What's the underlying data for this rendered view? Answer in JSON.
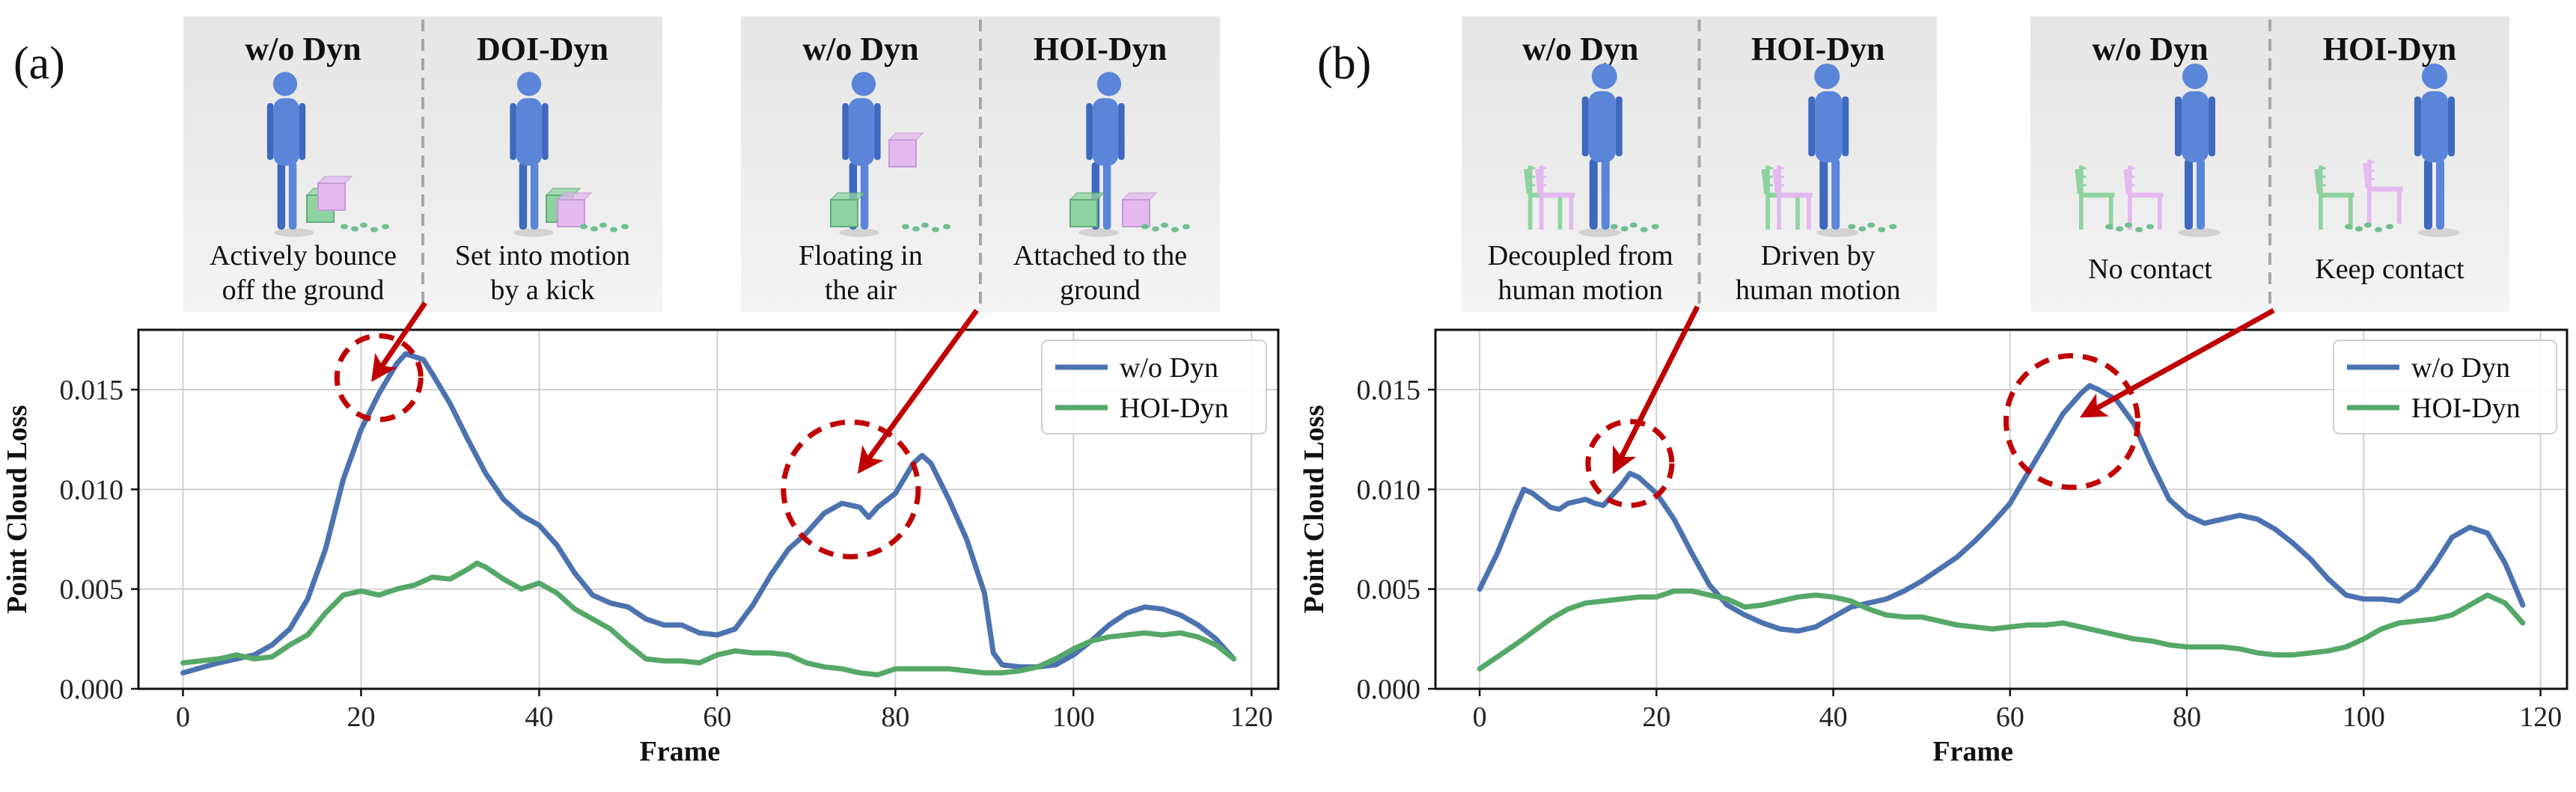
{
  "panels": [
    {
      "panel_label": "(a)",
      "insets": [
        {
          "left_title": "w/o Dyn",
          "right_title": "DOI-Dyn",
          "left_caption": [
            "Actively bounce",
            "off the ground"
          ],
          "right_caption": [
            "Set into motion",
            "by a kick"
          ]
        },
        {
          "left_title": "w/o Dyn",
          "right_title": "HOI-Dyn",
          "left_caption": [
            "Floating in",
            "the air"
          ],
          "right_caption": [
            "Attached to the",
            "ground"
          ]
        }
      ]
    },
    {
      "panel_label": "(b)",
      "insets": [
        {
          "left_title": "w/o Dyn",
          "right_title": "HOI-Dyn",
          "left_caption": [
            "Decoupled from",
            "human motion"
          ],
          "right_caption": [
            "Driven by",
            "human motion"
          ]
        },
        {
          "left_title": "w/o Dyn",
          "right_title": "HOI-Dyn",
          "left_caption": [
            "No contact"
          ],
          "right_caption": [
            "Keep contact"
          ]
        }
      ]
    }
  ],
  "colors": {
    "series_blue": "#4c72b0",
    "series_green": "#55a868",
    "annotation_red": "#c00000",
    "inset_bg": "#e9e9e9",
    "grid": "#d0d0d0"
  },
  "chart_data": [
    {
      "type": "line",
      "title": "",
      "xlabel": "Frame",
      "ylabel": "Point Cloud Loss",
      "xlim": [
        -5,
        123
      ],
      "ylim": [
        0,
        0.018
      ],
      "xticks": [
        0,
        20,
        40,
        60,
        80,
        100,
        120
      ],
      "yticks": [
        0.0,
        0.005,
        0.01,
        0.015
      ],
      "ytick_labels": [
        "0.000",
        "0.005",
        "0.010",
        "0.015"
      ],
      "grid": true,
      "legend_position": "top-right",
      "highlight_circles": [
        {
          "x": 22,
          "y": 0.0156
        },
        {
          "x": 75,
          "y": 0.01
        }
      ],
      "series": [
        {
          "name": "w/o Dyn",
          "color": "#4c72b0",
          "x": [
            0,
            4,
            8,
            10,
            12,
            14,
            16,
            18,
            20,
            22,
            24,
            25,
            27,
            28,
            30,
            32,
            34,
            36,
            38,
            40,
            42,
            44,
            46,
            48,
            50,
            52,
            54,
            56,
            58,
            60,
            62,
            64,
            66,
            68,
            70,
            72,
            74,
            76,
            77,
            78,
            80,
            82,
            83,
            84,
            86,
            88,
            90,
            91,
            92,
            94,
            96,
            98,
            100,
            102,
            104,
            106,
            108,
            110,
            112,
            114,
            116,
            118
          ],
          "y": [
            0.0008,
            0.0013,
            0.0017,
            0.0022,
            0.003,
            0.0045,
            0.007,
            0.0105,
            0.013,
            0.0148,
            0.0163,
            0.0168,
            0.0165,
            0.0158,
            0.0143,
            0.0125,
            0.0108,
            0.0095,
            0.0087,
            0.0082,
            0.0072,
            0.0058,
            0.0047,
            0.0043,
            0.0041,
            0.0035,
            0.0032,
            0.0032,
            0.0028,
            0.0027,
            0.003,
            0.0042,
            0.0057,
            0.007,
            0.0078,
            0.0088,
            0.0093,
            0.0091,
            0.0086,
            0.0091,
            0.0098,
            0.0113,
            0.0117,
            0.0113,
            0.0095,
            0.0075,
            0.0048,
            0.0018,
            0.0012,
            0.0011,
            0.0011,
            0.0012,
            0.0017,
            0.0024,
            0.0032,
            0.0038,
            0.0041,
            0.004,
            0.0037,
            0.0032,
            0.0025,
            0.0015
          ]
        },
        {
          "name": "HOI-Dyn",
          "color": "#55a868",
          "x": [
            0,
            4,
            6,
            8,
            10,
            12,
            14,
            16,
            18,
            20,
            22,
            24,
            26,
            28,
            30,
            32,
            33,
            34,
            36,
            38,
            40,
            42,
            44,
            46,
            48,
            50,
            52,
            54,
            56,
            58,
            60,
            62,
            64,
            66,
            68,
            70,
            72,
            74,
            76,
            78,
            80,
            82,
            84,
            86,
            88,
            90,
            92,
            94,
            96,
            98,
            100,
            102,
            104,
            106,
            108,
            110,
            112,
            114,
            116,
            118
          ],
          "y": [
            0.0013,
            0.0015,
            0.0017,
            0.0015,
            0.0016,
            0.0022,
            0.0027,
            0.0038,
            0.0047,
            0.0049,
            0.0047,
            0.005,
            0.0052,
            0.0056,
            0.0055,
            0.006,
            0.0063,
            0.0061,
            0.0055,
            0.005,
            0.0053,
            0.0048,
            0.004,
            0.0035,
            0.003,
            0.0022,
            0.0015,
            0.0014,
            0.0014,
            0.0013,
            0.0017,
            0.0019,
            0.0018,
            0.0018,
            0.0017,
            0.0013,
            0.0011,
            0.001,
            0.0008,
            0.0007,
            0.001,
            0.001,
            0.001,
            0.001,
            0.0009,
            0.0008,
            0.0008,
            0.0009,
            0.0011,
            0.0015,
            0.002,
            0.0024,
            0.0026,
            0.0027,
            0.0028,
            0.0027,
            0.0028,
            0.0026,
            0.0022,
            0.0015
          ]
        }
      ]
    },
    {
      "type": "line",
      "title": "",
      "xlabel": "Frame",
      "ylabel": "Point Cloud Loss",
      "xlim": [
        -5,
        123
      ],
      "ylim": [
        0,
        0.018
      ],
      "xticks": [
        0,
        20,
        40,
        60,
        80,
        100,
        120
      ],
      "yticks": [
        0.0,
        0.005,
        0.01,
        0.015
      ],
      "ytick_labels": [
        "0.000",
        "0.005",
        "0.010",
        "0.015"
      ],
      "grid": true,
      "legend_position": "top-right",
      "highlight_circles": [
        {
          "x": 17,
          "y": 0.0113
        },
        {
          "x": 67,
          "y": 0.0134
        }
      ],
      "series": [
        {
          "name": "w/o Dyn",
          "color": "#4c72b0",
          "x": [
            0,
            2,
            4,
            5,
            6,
            8,
            9,
            10,
            12,
            13,
            14,
            16,
            17,
            18,
            20,
            22,
            24,
            26,
            28,
            30,
            32,
            34,
            36,
            38,
            40,
            42,
            44,
            46,
            48,
            50,
            52,
            54,
            56,
            58,
            60,
            62,
            64,
            66,
            68,
            69,
            70,
            72,
            74,
            76,
            78,
            80,
            82,
            84,
            86,
            88,
            90,
            92,
            94,
            96,
            98,
            100,
            102,
            104,
            106,
            108,
            110,
            112,
            114,
            116,
            118
          ],
          "y": [
            0.005,
            0.0068,
            0.009,
            0.01,
            0.0098,
            0.0091,
            0.009,
            0.0093,
            0.0095,
            0.0093,
            0.0092,
            0.0102,
            0.0108,
            0.0106,
            0.0098,
            0.0085,
            0.0068,
            0.0052,
            0.0042,
            0.0037,
            0.0033,
            0.003,
            0.0029,
            0.0031,
            0.0036,
            0.0041,
            0.0043,
            0.0045,
            0.0049,
            0.0054,
            0.006,
            0.0066,
            0.0074,
            0.0083,
            0.0093,
            0.0108,
            0.0123,
            0.0138,
            0.0148,
            0.0152,
            0.015,
            0.0145,
            0.0133,
            0.0113,
            0.0095,
            0.0087,
            0.0083,
            0.0085,
            0.0087,
            0.0085,
            0.008,
            0.0073,
            0.0065,
            0.0055,
            0.0047,
            0.0045,
            0.0045,
            0.0044,
            0.005,
            0.0062,
            0.0076,
            0.0081,
            0.0078,
            0.0063,
            0.0042
          ]
        },
        {
          "name": "HOI-Dyn",
          "color": "#55a868",
          "x": [
            0,
            4,
            8,
            10,
            12,
            14,
            16,
            18,
            20,
            22,
            24,
            26,
            28,
            30,
            32,
            34,
            36,
            38,
            40,
            42,
            44,
            46,
            48,
            50,
            52,
            54,
            56,
            58,
            60,
            62,
            64,
            66,
            68,
            70,
            72,
            74,
            76,
            78,
            80,
            82,
            84,
            86,
            88,
            90,
            92,
            94,
            96,
            98,
            100,
            102,
            104,
            106,
            108,
            110,
            112,
            114,
            116,
            118
          ],
          "y": [
            0.001,
            0.0022,
            0.0035,
            0.004,
            0.0043,
            0.0044,
            0.0045,
            0.0046,
            0.0046,
            0.0049,
            0.0049,
            0.0047,
            0.0045,
            0.0041,
            0.0042,
            0.0044,
            0.0046,
            0.0047,
            0.0046,
            0.0044,
            0.004,
            0.0037,
            0.0036,
            0.0036,
            0.0034,
            0.0032,
            0.0031,
            0.003,
            0.0031,
            0.0032,
            0.0032,
            0.0033,
            0.0031,
            0.0029,
            0.0027,
            0.0025,
            0.0024,
            0.0022,
            0.0021,
            0.0021,
            0.0021,
            0.002,
            0.0018,
            0.0017,
            0.0017,
            0.0018,
            0.0019,
            0.0021,
            0.0025,
            0.003,
            0.0033,
            0.0034,
            0.0035,
            0.0037,
            0.0042,
            0.0047,
            0.0043,
            0.0033
          ]
        }
      ]
    }
  ]
}
